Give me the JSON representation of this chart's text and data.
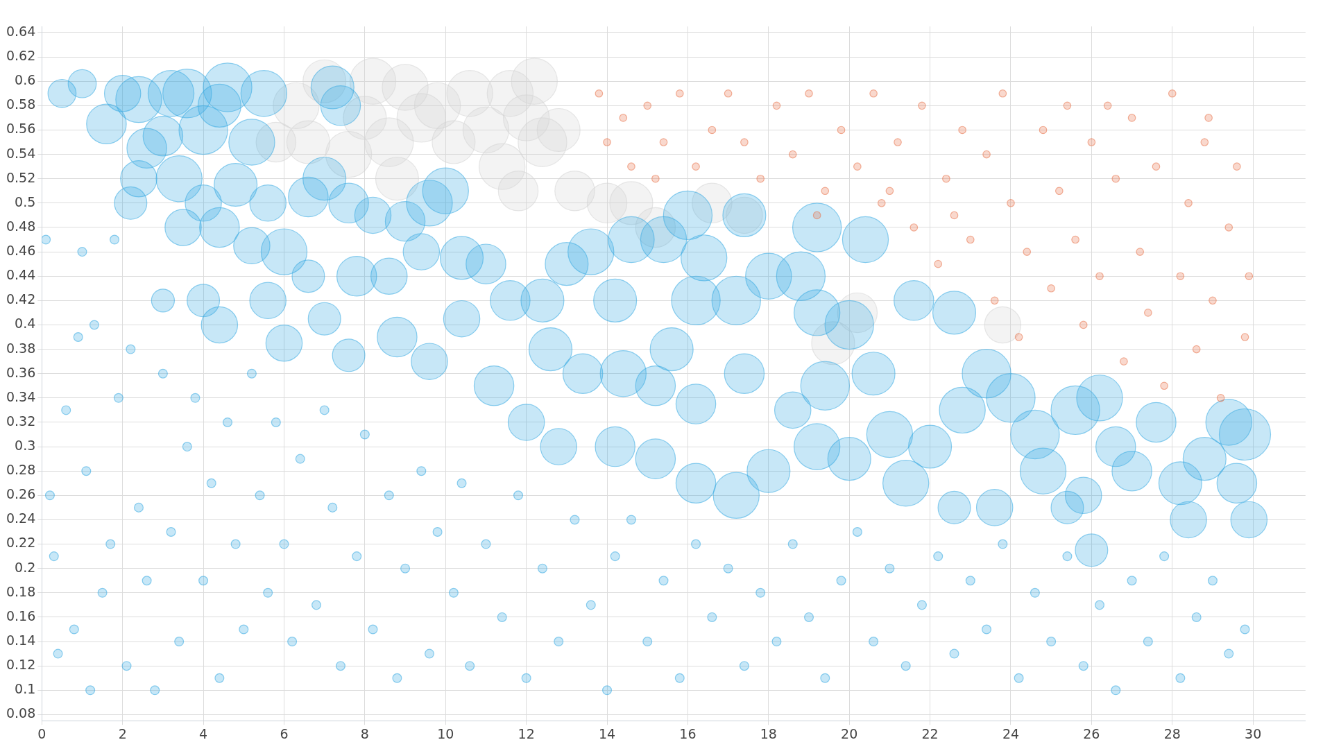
{
  "chart_data": {
    "type": "bubble",
    "xlim": [
      0,
      31.3
    ],
    "ylim": [
      0.075,
      0.645
    ],
    "xticks": [
      0,
      2,
      4,
      6,
      8,
      10,
      12,
      14,
      16,
      18,
      20,
      22,
      24,
      26,
      28,
      30
    ],
    "yticks": [
      {
        "value": 0.08,
        "label": "0.08"
      },
      {
        "value": 0.1,
        "label": "0.1"
      },
      {
        "value": 0.12,
        "label": "0.12"
      },
      {
        "value": 0.14,
        "label": "0.14"
      },
      {
        "value": 0.16,
        "label": "0.16"
      },
      {
        "value": 0.18,
        "label": "0.18"
      },
      {
        "value": 0.2,
        "label": "0.2"
      },
      {
        "value": 0.22,
        "label": "0.22"
      },
      {
        "value": 0.24,
        "label": "0.24"
      },
      {
        "value": 0.26,
        "label": "0.26"
      },
      {
        "value": 0.28,
        "label": "0.28"
      },
      {
        "value": 0.3,
        "label": "0.3"
      },
      {
        "value": 0.32,
        "label": "0.32"
      },
      {
        "value": 0.34,
        "label": "0.34"
      },
      {
        "value": 0.36,
        "label": "0.36"
      },
      {
        "value": 0.38,
        "label": "0.38"
      },
      {
        "value": 0.4,
        "label": "0.4"
      },
      {
        "value": 0.42,
        "label": "0.42"
      },
      {
        "value": 0.44,
        "label": "0.44"
      },
      {
        "value": 0.46,
        "label": "0.46"
      },
      {
        "value": 0.48,
        "label": "0.48"
      },
      {
        "value": 0.5,
        "label": "0.5"
      },
      {
        "value": 0.52,
        "label": "0.52"
      },
      {
        "value": 0.54,
        "label": "0.54"
      },
      {
        "value": 0.56,
        "label": "0.56"
      },
      {
        "value": 0.58,
        "label": "0.58"
      },
      {
        "value": 0.6,
        "label": "0.6"
      },
      {
        "value": 0.62,
        "label": "0.62"
      },
      {
        "value": 0.64,
        "label": "0.64"
      }
    ],
    "grid": true,
    "series": [
      {
        "color": "#d4d4d4",
        "x": [
          6.3,
          6.6,
          7.0,
          7.6,
          8.0,
          8.2,
          8.6,
          9.0,
          9.4,
          9.8,
          10.2,
          10.6,
          11.0,
          11.4,
          11.6,
          12.0,
          12.4,
          12.8,
          12.2,
          13.2,
          14.0,
          14.6,
          15.2,
          16.6,
          17.4,
          8.8,
          11.8,
          19.6,
          23.8,
          20.2,
          5.8
        ],
        "values": [
          0.58,
          0.55,
          0.6,
          0.54,
          0.57,
          0.6,
          0.55,
          0.595,
          0.57,
          0.58,
          0.55,
          0.59,
          0.56,
          0.53,
          0.59,
          0.57,
          0.55,
          0.56,
          0.6,
          0.51,
          0.5,
          0.5,
          0.48,
          0.5,
          0.49,
          0.52,
          0.51,
          0.385,
          0.4,
          0.41,
          0.55
        ],
        "sizes": [
          0.8,
          0.7,
          0.7,
          0.8,
          0.7,
          0.8,
          0.9,
          0.8,
          0.9,
          0.8,
          0.7,
          0.8,
          0.8,
          0.8,
          0.8,
          0.8,
          0.9,
          0.7,
          0.8,
          0.6,
          0.6,
          0.7,
          0.6,
          0.6,
          0.5,
          0.7,
          0.6,
          0.7,
          0.5,
          0.6,
          0.6
        ]
      },
      {
        "color": "#36a9e1",
        "x": [
          0.5,
          1.0,
          1.6,
          2.0,
          2.4,
          2.4,
          2.2,
          2.6,
          3.2,
          3.6,
          3.0,
          3.4,
          4.0,
          4.6,
          4.4,
          5.5,
          5.2,
          4.0,
          4.4,
          3.5,
          4.8,
          5.6,
          6.0,
          5.2,
          6.6,
          7.2,
          7.4,
          7.0,
          7.6,
          8.2,
          9.0,
          9.6,
          10.0,
          10.4,
          11.0,
          9.4,
          8.6,
          7.8,
          6.6,
          5.6,
          4.4,
          4.0,
          3.0,
          6.0,
          7.0,
          7.6,
          8.8,
          9.6,
          10.4,
          11.2,
          11.6,
          12.4,
          13.0,
          13.6,
          14.2,
          14.6,
          15.4,
          16.0,
          16.4,
          17.4,
          17.2,
          16.2,
          15.6,
          18.0,
          18.8,
          19.2,
          19.2,
          20.0,
          20.4,
          21.6,
          22.6,
          20.6,
          19.4,
          18.6,
          17.4,
          16.2,
          15.2,
          14.4,
          13.4,
          12.6,
          12.0,
          12.8,
          14.2,
          15.2,
          16.2,
          17.2,
          18.0,
          19.2,
          20.0,
          21.0,
          21.4,
          22.0,
          22.8,
          23.4,
          24.0,
          24.6,
          24.8,
          25.6,
          26.2,
          25.8,
          26.6,
          27.0,
          27.6,
          28.2,
          28.4,
          28.8,
          29.4,
          29.8,
          29.6,
          29.9,
          22.6,
          23.6,
          26.0,
          25.4
        ],
        "values": [
          0.59,
          0.598,
          0.565,
          0.59,
          0.585,
          0.52,
          0.5,
          0.545,
          0.59,
          0.59,
          0.555,
          0.52,
          0.56,
          0.595,
          0.58,
          0.59,
          0.55,
          0.5,
          0.48,
          0.48,
          0.515,
          0.5,
          0.46,
          0.465,
          0.505,
          0.595,
          0.58,
          0.52,
          0.5,
          0.49,
          0.485,
          0.5,
          0.51,
          0.455,
          0.45,
          0.46,
          0.44,
          0.44,
          0.44,
          0.42,
          0.4,
          0.42,
          0.42,
          0.385,
          0.405,
          0.375,
          0.39,
          0.37,
          0.405,
          0.35,
          0.42,
          0.42,
          0.45,
          0.46,
          0.42,
          0.47,
          0.47,
          0.49,
          0.455,
          0.49,
          0.42,
          0.42,
          0.38,
          0.44,
          0.44,
          0.41,
          0.48,
          0.4,
          0.47,
          0.42,
          0.41,
          0.36,
          0.35,
          0.33,
          0.36,
          0.335,
          0.35,
          0.36,
          0.36,
          0.38,
          0.32,
          0.3,
          0.3,
          0.29,
          0.27,
          0.26,
          0.28,
          0.3,
          0.29,
          0.31,
          0.27,
          0.3,
          0.33,
          0.36,
          0.34,
          0.31,
          0.28,
          0.33,
          0.34,
          0.26,
          0.3,
          0.28,
          0.32,
          0.27,
          0.24,
          0.29,
          0.32,
          0.31,
          0.27,
          0.24,
          0.25,
          0.25,
          0.215,
          0.25
        ],
        "sizes": [
          0.3,
          0.3,
          0.6,
          0.5,
          0.8,
          0.5,
          0.4,
          0.6,
          0.8,
          0.9,
          0.6,
          0.8,
          0.9,
          0.9,
          0.7,
          0.8,
          0.8,
          0.5,
          0.6,
          0.5,
          0.7,
          0.5,
          0.8,
          0.5,
          0.6,
          0.7,
          0.6,
          0.7,
          0.6,
          0.5,
          0.6,
          0.8,
          0.8,
          0.7,
          0.6,
          0.5,
          0.5,
          0.6,
          0.4,
          0.5,
          0.5,
          0.4,
          0.2,
          0.5,
          0.4,
          0.4,
          0.6,
          0.5,
          0.5,
          0.6,
          0.6,
          0.7,
          0.7,
          0.8,
          0.7,
          0.8,
          0.8,
          0.9,
          0.8,
          0.7,
          0.9,
          0.9,
          0.7,
          0.8,
          0.9,
          0.8,
          0.9,
          0.9,
          0.8,
          0.6,
          0.7,
          0.7,
          0.9,
          0.5,
          0.6,
          0.6,
          0.6,
          0.8,
          0.6,
          0.7,
          0.5,
          0.5,
          0.6,
          0.6,
          0.6,
          0.8,
          0.7,
          0.8,
          0.7,
          0.8,
          0.8,
          0.7,
          0.8,
          0.9,
          0.9,
          0.9,
          0.8,
          0.9,
          0.8,
          0.5,
          0.6,
          0.6,
          0.6,
          0.7,
          0.5,
          0.7,
          0.8,
          1.0,
          0.6,
          0.5,
          0.4,
          0.5,
          0.4,
          0.4
        ]
      },
      {
        "color": "#36a9e1",
        "x": [
          0.1,
          0.2,
          0.3,
          0.4,
          0.6,
          0.8,
          0.9,
          1.0,
          1.1,
          1.2,
          1.3,
          1.5,
          1.7,
          1.8,
          1.9,
          2.1,
          2.2,
          2.4,
          2.6,
          2.8,
          3.0,
          3.2,
          3.4,
          3.6,
          3.8,
          4.0,
          4.2,
          4.4,
          4.6,
          4.8,
          5.0,
          5.2,
          5.4,
          5.6,
          5.8,
          6.0,
          6.2,
          6.4,
          6.8,
          7.0,
          7.2,
          7.4,
          7.8,
          8.0,
          8.2,
          8.6,
          8.8,
          9.0,
          9.4,
          9.6,
          9.8,
          10.2,
          10.4,
          10.6,
          11.0,
          11.4,
          11.8,
          12.0,
          12.4,
          12.8,
          13.2,
          13.6,
          14.0,
          14.2,
          14.6,
          15.0,
          15.4,
          15.8,
          16.2,
          16.6,
          17.0,
          17.4,
          17.8,
          18.2,
          18.6,
          19.0,
          19.4,
          19.8,
          20.2,
          20.6,
          21.0,
          21.4,
          21.8,
          22.2,
          22.6,
          23.0,
          23.4,
          23.8,
          24.2,
          24.6,
          25.0,
          25.4,
          25.8,
          26.2,
          26.6,
          27.0,
          27.4,
          27.8,
          28.2,
          28.6,
          29.0,
          29.4,
          29.8
        ],
        "values": [
          0.47,
          0.26,
          0.21,
          0.13,
          0.33,
          0.15,
          0.39,
          0.46,
          0.28,
          0.1,
          0.4,
          0.18,
          0.22,
          0.47,
          0.34,
          0.12,
          0.38,
          0.25,
          0.19,
          0.1,
          0.36,
          0.23,
          0.14,
          0.3,
          0.34,
          0.19,
          0.27,
          0.11,
          0.32,
          0.22,
          0.15,
          0.36,
          0.26,
          0.18,
          0.32,
          0.22,
          0.14,
          0.29,
          0.17,
          0.33,
          0.25,
          0.12,
          0.21,
          0.31,
          0.15,
          0.26,
          0.11,
          0.2,
          0.28,
          0.13,
          0.23,
          0.18,
          0.27,
          0.12,
          0.22,
          0.16,
          0.26,
          0.11,
          0.2,
          0.14,
          0.24,
          0.17,
          0.1,
          0.21,
          0.24,
          0.14,
          0.19,
          0.11,
          0.22,
          0.16,
          0.2,
          0.12,
          0.18,
          0.14,
          0.22,
          0.16,
          0.11,
          0.19,
          0.23,
          0.14,
          0.2,
          0.12,
          0.17,
          0.21,
          0.13,
          0.19,
          0.15,
          0.22,
          0.11,
          0.18,
          0.14,
          0.21,
          0.12,
          0.17,
          0.1,
          0.19,
          0.14,
          0.21,
          0.11,
          0.16,
          0.19,
          0.13,
          0.15
        ],
        "sizes": [
          0.03,
          0.03,
          0.03,
          0.03,
          0.03,
          0.03,
          0.03,
          0.03,
          0.03,
          0.03,
          0.03,
          0.03,
          0.03,
          0.03,
          0.03,
          0.03,
          0.03,
          0.03,
          0.03,
          0.03,
          0.03,
          0.03,
          0.03,
          0.03,
          0.03,
          0.03,
          0.03,
          0.03,
          0.03,
          0.03,
          0.03,
          0.03,
          0.03,
          0.03,
          0.03,
          0.03,
          0.03,
          0.03,
          0.03,
          0.03,
          0.03,
          0.03,
          0.03,
          0.03,
          0.03,
          0.03,
          0.03,
          0.03,
          0.03,
          0.03,
          0.03,
          0.03,
          0.03,
          0.03,
          0.03,
          0.03,
          0.03,
          0.03,
          0.03,
          0.03,
          0.03,
          0.03,
          0.03,
          0.03,
          0.03,
          0.03,
          0.03,
          0.03,
          0.03,
          0.03,
          0.03,
          0.03,
          0.03,
          0.03,
          0.03,
          0.03,
          0.03,
          0.03,
          0.03,
          0.03,
          0.03,
          0.03,
          0.03,
          0.03,
          0.03,
          0.03,
          0.03,
          0.03,
          0.03,
          0.03,
          0.03,
          0.03,
          0.03,
          0.03,
          0.03,
          0.03,
          0.03,
          0.03,
          0.03,
          0.03,
          0.03,
          0.03,
          0.03
        ]
      },
      {
        "color": "#e8734a",
        "x": [
          13.8,
          14.0,
          14.4,
          14.6,
          15.0,
          15.4,
          15.8,
          16.2,
          16.6,
          17.0,
          17.4,
          17.8,
          18.2,
          18.6,
          19.0,
          19.4,
          19.8,
          20.2,
          20.6,
          20.8,
          21.2,
          21.6,
          21.8,
          22.2,
          22.4,
          22.8,
          23.0,
          23.4,
          23.6,
          23.8,
          24.0,
          24.2,
          24.4,
          24.8,
          25.0,
          25.2,
          25.4,
          25.6,
          25.8,
          26.0,
          26.2,
          26.6,
          26.8,
          27.0,
          27.2,
          27.4,
          27.6,
          27.8,
          28.0,
          28.2,
          28.4,
          28.6,
          28.8,
          29.0,
          29.2,
          29.4,
          29.6,
          29.8,
          29.9,
          15.2,
          19.2,
          21.0,
          22.6,
          26.4,
          28.9
        ],
        "values": [
          0.59,
          0.55,
          0.57,
          0.53,
          0.58,
          0.55,
          0.59,
          0.53,
          0.56,
          0.59,
          0.55,
          0.52,
          0.58,
          0.54,
          0.59,
          0.51,
          0.56,
          0.53,
          0.59,
          0.5,
          0.55,
          0.48,
          0.58,
          0.45,
          0.52,
          0.56,
          0.47,
          0.54,
          0.42,
          0.59,
          0.5,
          0.39,
          0.46,
          0.56,
          0.43,
          0.51,
          0.58,
          0.47,
          0.4,
          0.55,
          0.44,
          0.52,
          0.37,
          0.57,
          0.46,
          0.41,
          0.53,
          0.35,
          0.59,
          0.44,
          0.5,
          0.38,
          0.55,
          0.42,
          0.34,
          0.48,
          0.53,
          0.39,
          0.44,
          0.52,
          0.49,
          0.51,
          0.49,
          0.58,
          0.57
        ],
        "sizes": [
          0.02,
          0.02,
          0.02,
          0.02,
          0.02,
          0.02,
          0.02,
          0.02,
          0.02,
          0.02,
          0.02,
          0.02,
          0.02,
          0.02,
          0.02,
          0.02,
          0.02,
          0.02,
          0.02,
          0.02,
          0.02,
          0.02,
          0.02,
          0.02,
          0.02,
          0.02,
          0.02,
          0.02,
          0.02,
          0.02,
          0.02,
          0.02,
          0.02,
          0.02,
          0.02,
          0.02,
          0.02,
          0.02,
          0.02,
          0.02,
          0.02,
          0.02,
          0.02,
          0.02,
          0.02,
          0.02,
          0.02,
          0.02,
          0.02,
          0.02,
          0.02,
          0.02,
          0.02,
          0.02,
          0.02,
          0.02,
          0.02,
          0.02,
          0.02,
          0.02,
          0.02,
          0.02,
          0.02,
          0.02,
          0.02
        ]
      }
    ]
  }
}
